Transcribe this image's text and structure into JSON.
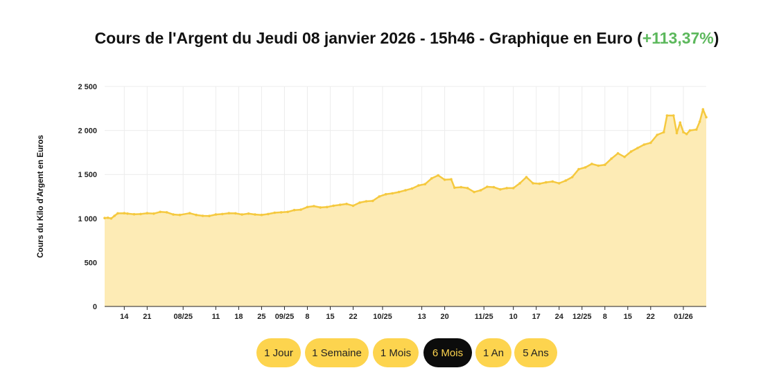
{
  "title": {
    "main": "Cours de l'Argent du Jeudi 08 janvier 2026 - 15h46 - Graphique en Euro (",
    "change": "+113,37%",
    "close": ")"
  },
  "colors": {
    "line": "#f5c93f",
    "fill": "#fdebb5",
    "change": "#5cb85c",
    "button": "#fdd44e",
    "button_active_bg": "#0c0c0c",
    "button_active_text": "#fdd44e"
  },
  "buttons": [
    {
      "label": "1 Jour",
      "active": false
    },
    {
      "label": "1 Semaine",
      "active": false
    },
    {
      "label": "1 Mois",
      "active": false
    },
    {
      "label": "6 Mois",
      "active": true
    },
    {
      "label": "1 An",
      "active": false
    },
    {
      "label": "5 Ans",
      "active": false
    }
  ],
  "chart_data": {
    "type": "area",
    "ylabel": "Cours du Kilo d'Argent en Euros",
    "ylim": [
      0,
      2500
    ],
    "y_ticks": [
      0,
      500,
      1000,
      1500,
      2000,
      2500
    ],
    "y_tick_labels": [
      "0",
      "500",
      "1 000",
      "1 500",
      "2 000",
      "2 500"
    ],
    "x_range": [
      "2025-07-08",
      "2026-01-08"
    ],
    "x_ticks": [
      {
        "date": "2025-07-14",
        "label": "14"
      },
      {
        "date": "2025-07-21",
        "label": "21"
      },
      {
        "date": "2025-08-01",
        "label": "08/25"
      },
      {
        "date": "2025-08-11",
        "label": "11"
      },
      {
        "date": "2025-08-18",
        "label": "18"
      },
      {
        "date": "2025-08-25",
        "label": "25"
      },
      {
        "date": "2025-09-01",
        "label": "09/25"
      },
      {
        "date": "2025-09-08",
        "label": "8"
      },
      {
        "date": "2025-09-15",
        "label": "15"
      },
      {
        "date": "2025-09-22",
        "label": "22"
      },
      {
        "date": "2025-10-01",
        "label": "10/25"
      },
      {
        "date": "2025-10-13",
        "label": "13"
      },
      {
        "date": "2025-10-20",
        "label": "20"
      },
      {
        "date": "2025-11-01",
        "label": "11/25"
      },
      {
        "date": "2025-11-10",
        "label": "10"
      },
      {
        "date": "2025-11-17",
        "label": "17"
      },
      {
        "date": "2025-11-24",
        "label": "24"
      },
      {
        "date": "2025-12-01",
        "label": "12/25"
      },
      {
        "date": "2025-12-08",
        "label": "8"
      },
      {
        "date": "2025-12-15",
        "label": "15"
      },
      {
        "date": "2025-12-22",
        "label": "22"
      },
      {
        "date": "2026-01-01",
        "label": "01/26"
      }
    ],
    "grid": true,
    "series": [
      {
        "points": [
          [
            "2025-07-08",
            1005
          ],
          [
            "2025-07-09",
            1008
          ],
          [
            "2025-07-10",
            1000
          ],
          [
            "2025-07-11",
            1030
          ],
          [
            "2025-07-12",
            1058
          ],
          [
            "2025-07-14",
            1060
          ],
          [
            "2025-07-15",
            1055
          ],
          [
            "2025-07-17",
            1048
          ],
          [
            "2025-07-19",
            1050
          ],
          [
            "2025-07-21",
            1060
          ],
          [
            "2025-07-23",
            1055
          ],
          [
            "2025-07-25",
            1075
          ],
          [
            "2025-07-27",
            1070
          ],
          [
            "2025-07-29",
            1045
          ],
          [
            "2025-07-31",
            1040
          ],
          [
            "2025-08-03",
            1060
          ],
          [
            "2025-08-05",
            1040
          ],
          [
            "2025-08-07",
            1030
          ],
          [
            "2025-08-09",
            1028
          ],
          [
            "2025-08-11",
            1045
          ],
          [
            "2025-08-13",
            1050
          ],
          [
            "2025-08-15",
            1060
          ],
          [
            "2025-08-17",
            1058
          ],
          [
            "2025-08-19",
            1045
          ],
          [
            "2025-08-21",
            1055
          ],
          [
            "2025-08-23",
            1045
          ],
          [
            "2025-08-25",
            1040
          ],
          [
            "2025-08-27",
            1050
          ],
          [
            "2025-08-29",
            1065
          ],
          [
            "2025-08-31",
            1070
          ],
          [
            "2025-09-02",
            1075
          ],
          [
            "2025-09-04",
            1095
          ],
          [
            "2025-09-06",
            1100
          ],
          [
            "2025-09-08",
            1130
          ],
          [
            "2025-09-10",
            1140
          ],
          [
            "2025-09-12",
            1125
          ],
          [
            "2025-09-14",
            1130
          ],
          [
            "2025-09-16",
            1145
          ],
          [
            "2025-09-18",
            1155
          ],
          [
            "2025-09-20",
            1165
          ],
          [
            "2025-09-22",
            1145
          ],
          [
            "2025-09-24",
            1180
          ],
          [
            "2025-09-26",
            1195
          ],
          [
            "2025-09-28",
            1200
          ],
          [
            "2025-09-30",
            1250
          ],
          [
            "2025-10-02",
            1275
          ],
          [
            "2025-10-04",
            1285
          ],
          [
            "2025-10-06",
            1300
          ],
          [
            "2025-10-08",
            1320
          ],
          [
            "2025-10-10",
            1340
          ],
          [
            "2025-10-12",
            1375
          ],
          [
            "2025-10-14",
            1390
          ],
          [
            "2025-10-16",
            1455
          ],
          [
            "2025-10-18",
            1490
          ],
          [
            "2025-10-20",
            1440
          ],
          [
            "2025-10-22",
            1445
          ],
          [
            "2025-10-23",
            1350
          ],
          [
            "2025-10-25",
            1355
          ],
          [
            "2025-10-27",
            1345
          ],
          [
            "2025-10-29",
            1300
          ],
          [
            "2025-10-31",
            1320
          ],
          [
            "2025-11-02",
            1360
          ],
          [
            "2025-11-04",
            1355
          ],
          [
            "2025-11-06",
            1330
          ],
          [
            "2025-11-08",
            1345
          ],
          [
            "2025-11-10",
            1345
          ],
          [
            "2025-11-12",
            1400
          ],
          [
            "2025-11-14",
            1470
          ],
          [
            "2025-11-16",
            1400
          ],
          [
            "2025-11-18",
            1395
          ],
          [
            "2025-11-20",
            1410
          ],
          [
            "2025-11-22",
            1420
          ],
          [
            "2025-11-24",
            1400
          ],
          [
            "2025-11-26",
            1430
          ],
          [
            "2025-11-28",
            1470
          ],
          [
            "2025-11-30",
            1560
          ],
          [
            "2025-12-02",
            1580
          ],
          [
            "2025-12-04",
            1620
          ],
          [
            "2025-12-06",
            1600
          ],
          [
            "2025-12-08",
            1610
          ],
          [
            "2025-12-10",
            1680
          ],
          [
            "2025-12-12",
            1740
          ],
          [
            "2025-12-14",
            1700
          ],
          [
            "2025-12-16",
            1760
          ],
          [
            "2025-12-18",
            1800
          ],
          [
            "2025-12-20",
            1840
          ],
          [
            "2025-12-22",
            1860
          ],
          [
            "2025-12-24",
            1950
          ],
          [
            "2025-12-26",
            1980
          ],
          [
            "2025-12-27",
            2170
          ],
          [
            "2025-12-29",
            2170
          ],
          [
            "2025-12-30",
            1970
          ],
          [
            "2025-12-31",
            2090
          ],
          [
            "2026-01-01",
            1980
          ],
          [
            "2026-01-02",
            1960
          ],
          [
            "2026-01-03",
            2000
          ],
          [
            "2026-01-05",
            2010
          ],
          [
            "2026-01-06",
            2100
          ],
          [
            "2026-01-07",
            2240
          ],
          [
            "2026-01-08",
            2150
          ]
        ]
      }
    ]
  }
}
